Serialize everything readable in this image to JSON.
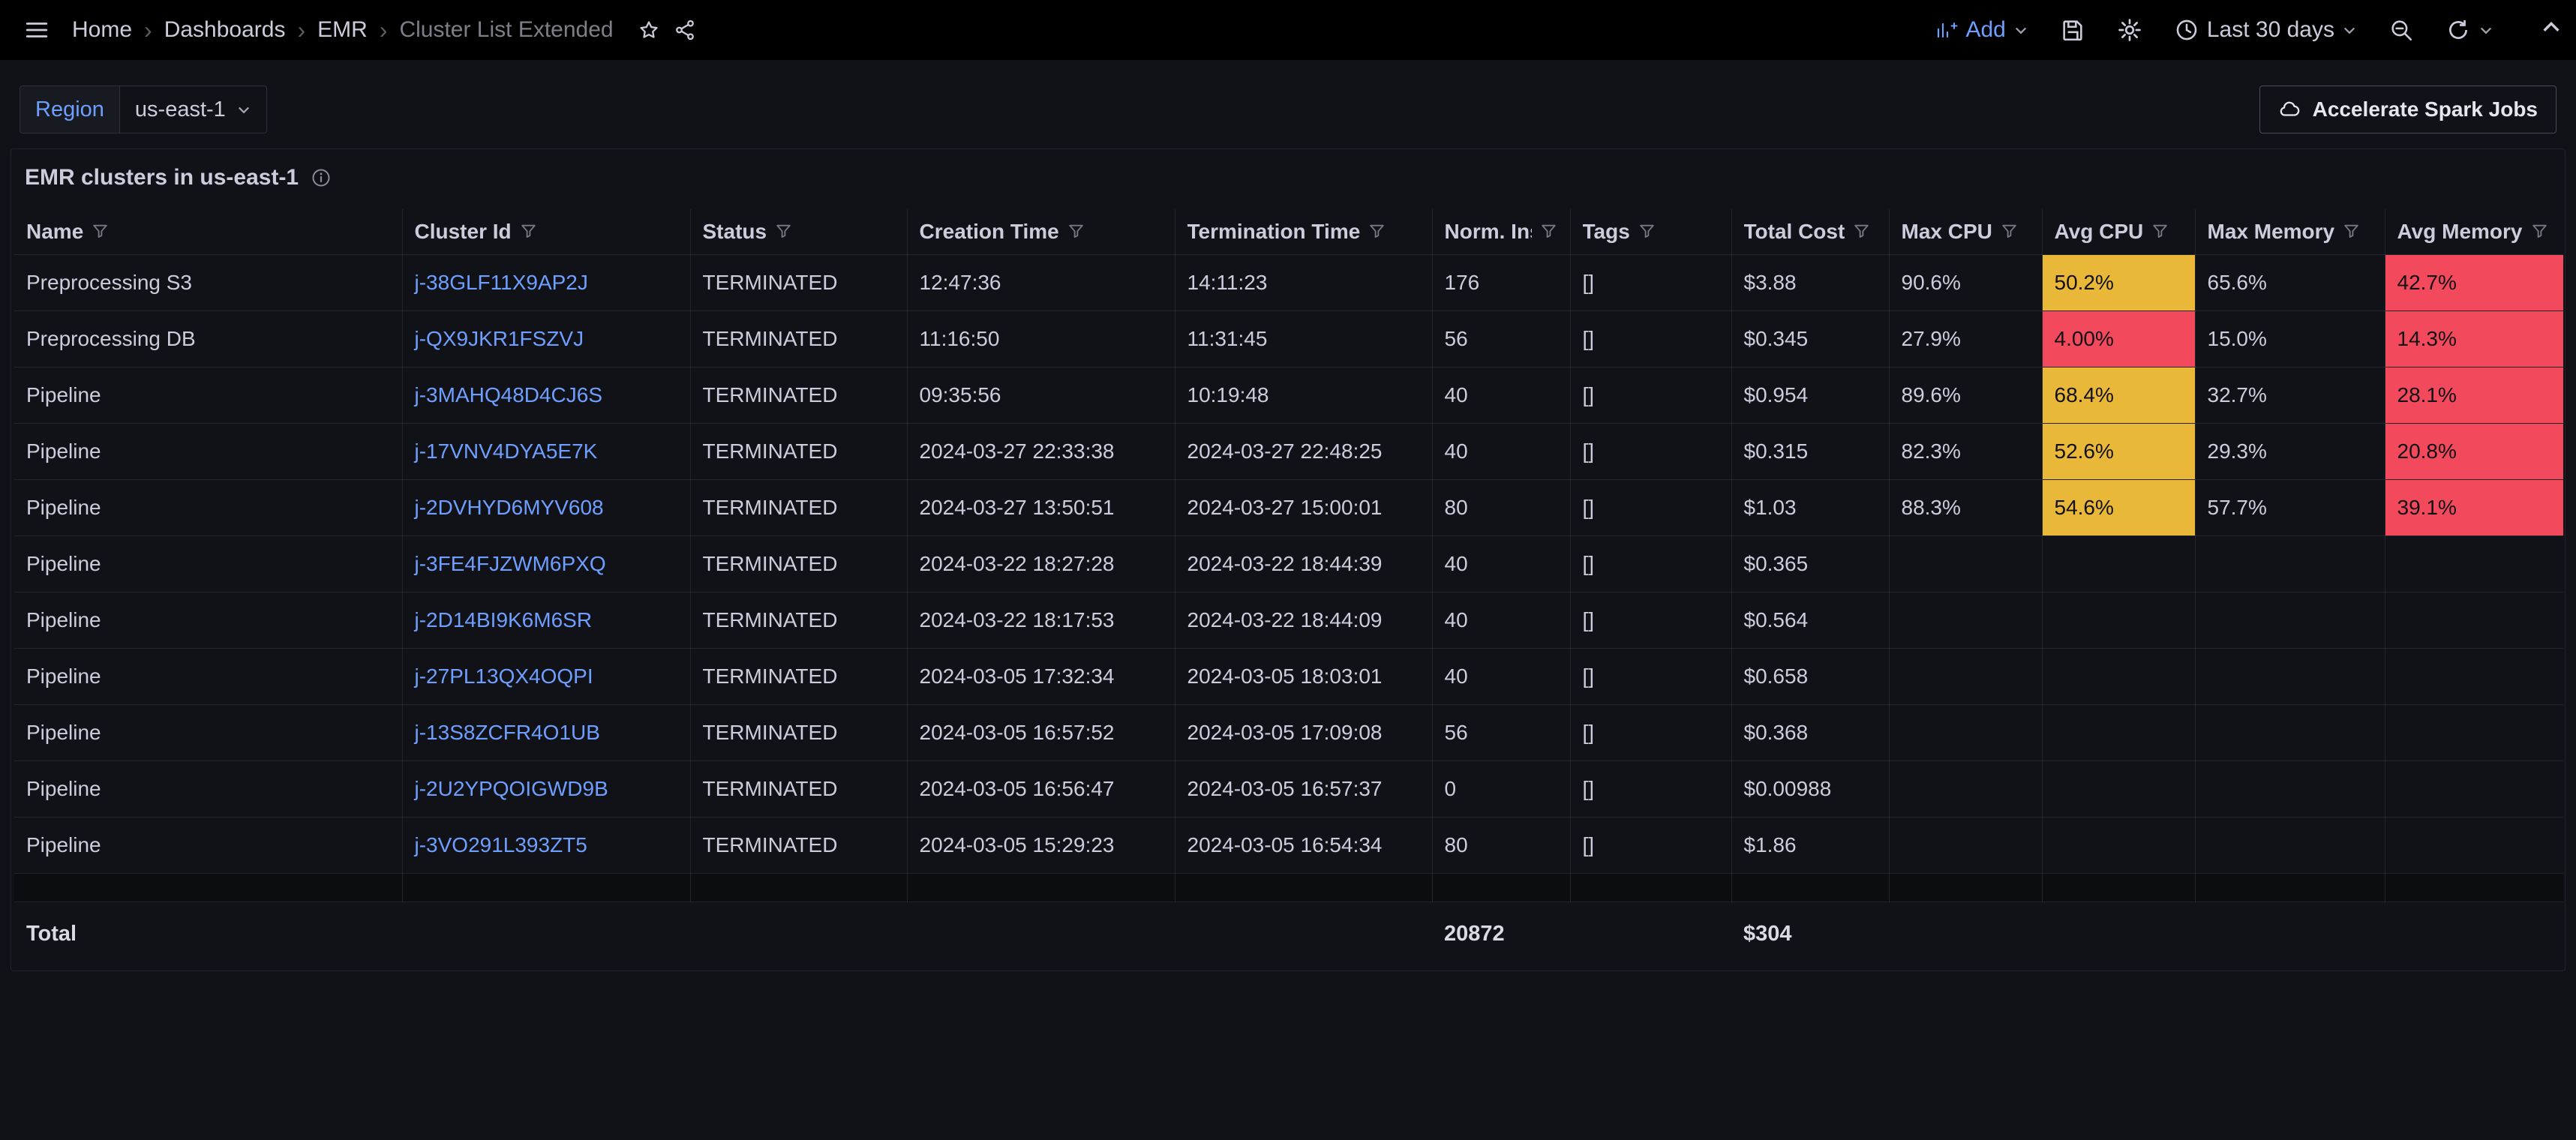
{
  "colors": {
    "background": "#111217",
    "topnav": "#000000",
    "text": "#CCCCDC",
    "border": "rgba(204,204,220,0.10)",
    "accent_blue": "#6E9FFF",
    "cell_yellow": "#EAB839",
    "cell_red": "#F2495C"
  },
  "icons": {
    "topnav": [
      "menu",
      "star",
      "share",
      "add-panel",
      "save",
      "settings",
      "clock",
      "zoom-out",
      "refresh",
      "caret-down",
      "chevron-up"
    ],
    "subbar": [
      "caret-down",
      "cloud"
    ],
    "panel": [
      "info"
    ],
    "table": [
      "filter-funnel"
    ]
  },
  "topnav": {
    "breadcrumbs": [
      "Home",
      "Dashboards",
      "EMR",
      "Cluster List Extended"
    ],
    "add_label": "Add",
    "time_range_label": "Last 30 days"
  },
  "filters": {
    "region_label": "Region",
    "region_value": "us-east-1"
  },
  "actions": {
    "accelerate_button": "Accelerate Spark Jobs"
  },
  "panel": {
    "title": "EMR clusters in us-east-1"
  },
  "table": {
    "columns": [
      "Name",
      "Cluster Id",
      "Status",
      "Creation Time",
      "Termination Time",
      "Norm. Instance Hours",
      "Tags",
      "Total Cost",
      "Max CPU",
      "Avg CPU",
      "Max Memory",
      "Avg Memory"
    ],
    "rows": [
      {
        "name": "Preprocessing S3",
        "cluster_id": "j-38GLF11X9AP2J",
        "status": "TERMINATED",
        "creation_time": "12:47:36",
        "termination_time": "14:11:23",
        "norm_instance_hours": "176",
        "tags": "[]",
        "total_cost": "$3.88",
        "max_cpu": "90.6%",
        "avg_cpu": "50.2%",
        "avg_cpu_color": "yellow",
        "max_memory": "65.6%",
        "avg_memory": "42.7%",
        "avg_memory_color": "red"
      },
      {
        "name": "Preprocessing DB",
        "cluster_id": "j-QX9JKR1FSZVJ",
        "status": "TERMINATED",
        "creation_time": "11:16:50",
        "termination_time": "11:31:45",
        "norm_instance_hours": "56",
        "tags": "[]",
        "total_cost": "$0.345",
        "max_cpu": "27.9%",
        "avg_cpu": "4.00%",
        "avg_cpu_color": "red",
        "max_memory": "15.0%",
        "avg_memory": "14.3%",
        "avg_memory_color": "red"
      },
      {
        "name": "Pipeline",
        "cluster_id": "j-3MAHQ48D4CJ6S",
        "status": "TERMINATED",
        "creation_time": "09:35:56",
        "termination_time": "10:19:48",
        "norm_instance_hours": "40",
        "tags": "[]",
        "total_cost": "$0.954",
        "max_cpu": "89.6%",
        "avg_cpu": "68.4%",
        "avg_cpu_color": "yellow",
        "max_memory": "32.7%",
        "avg_memory": "28.1%",
        "avg_memory_color": "red"
      },
      {
        "name": "Pipeline",
        "cluster_id": "j-17VNV4DYA5E7K",
        "status": "TERMINATED",
        "creation_time": "2024-03-27 22:33:38",
        "termination_time": "2024-03-27 22:48:25",
        "norm_instance_hours": "40",
        "tags": "[]",
        "total_cost": "$0.315",
        "max_cpu": "82.3%",
        "avg_cpu": "52.6%",
        "avg_cpu_color": "yellow",
        "max_memory": "29.3%",
        "avg_memory": "20.8%",
        "avg_memory_color": "red"
      },
      {
        "name": "Pipeline",
        "cluster_id": "j-2DVHYD6MYV608",
        "status": "TERMINATED",
        "creation_time": "2024-03-27 13:50:51",
        "termination_time": "2024-03-27 15:00:01",
        "norm_instance_hours": "80",
        "tags": "[]",
        "total_cost": "$1.03",
        "max_cpu": "88.3%",
        "avg_cpu": "54.6%",
        "avg_cpu_color": "yellow",
        "max_memory": "57.7%",
        "avg_memory": "39.1%",
        "avg_memory_color": "red"
      },
      {
        "name": "Pipeline",
        "cluster_id": "j-3FE4FJZWM6PXQ",
        "status": "TERMINATED",
        "creation_time": "2024-03-22 18:27:28",
        "termination_time": "2024-03-22 18:44:39",
        "norm_instance_hours": "40",
        "tags": "[]",
        "total_cost": "$0.365",
        "max_cpu": "",
        "avg_cpu": "",
        "max_memory": "",
        "avg_memory": ""
      },
      {
        "name": "Pipeline",
        "cluster_id": "j-2D14BI9K6M6SR",
        "status": "TERMINATED",
        "creation_time": "2024-03-22 18:17:53",
        "termination_time": "2024-03-22 18:44:09",
        "norm_instance_hours": "40",
        "tags": "[]",
        "total_cost": "$0.564",
        "max_cpu": "",
        "avg_cpu": "",
        "max_memory": "",
        "avg_memory": ""
      },
      {
        "name": "Pipeline",
        "cluster_id": "j-27PL13QX4OQPI",
        "status": "TERMINATED",
        "creation_time": "2024-03-05 17:32:34",
        "termination_time": "2024-03-05 18:03:01",
        "norm_instance_hours": "40",
        "tags": "[]",
        "total_cost": "$0.658",
        "max_cpu": "",
        "avg_cpu": "",
        "max_memory": "",
        "avg_memory": ""
      },
      {
        "name": "Pipeline",
        "cluster_id": "j-13S8ZCFR4O1UB",
        "status": "TERMINATED",
        "creation_time": "2024-03-05 16:57:52",
        "termination_time": "2024-03-05 17:09:08",
        "norm_instance_hours": "56",
        "tags": "[]",
        "total_cost": "$0.368",
        "max_cpu": "",
        "avg_cpu": "",
        "max_memory": "",
        "avg_memory": ""
      },
      {
        "name": "Pipeline",
        "cluster_id": "j-2U2YPQOIGWD9B",
        "status": "TERMINATED",
        "creation_time": "2024-03-05 16:56:47",
        "termination_time": "2024-03-05 16:57:37",
        "norm_instance_hours": "0",
        "tags": "[]",
        "total_cost": "$0.00988",
        "max_cpu": "",
        "avg_cpu": "",
        "max_memory": "",
        "avg_memory": ""
      },
      {
        "name": "Pipeline",
        "cluster_id": "j-3VO291L393ZT5",
        "status": "TERMINATED",
        "creation_time": "2024-03-05 15:29:23",
        "termination_time": "2024-03-05 16:54:34",
        "norm_instance_hours": "80",
        "tags": "[]",
        "total_cost": "$1.86",
        "max_cpu": "",
        "avg_cpu": "",
        "max_memory": "",
        "avg_memory": ""
      }
    ],
    "total": {
      "label": "Total",
      "norm_instance_hours": "20872",
      "total_cost": "$304"
    }
  }
}
